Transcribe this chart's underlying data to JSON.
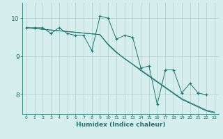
{
  "xlabel": "Humidex (Indice chaleur)",
  "ylabel": "",
  "background_color": "#d6eeee",
  "line_color": "#1a7a6e",
  "grid_color": "#b0cccc",
  "x_data": [
    0,
    1,
    2,
    3,
    4,
    5,
    6,
    7,
    8,
    9,
    10,
    11,
    12,
    13,
    14,
    15,
    16,
    17,
    18,
    19,
    20,
    21,
    22,
    23
  ],
  "y_main": [
    9.75,
    9.75,
    9.75,
    9.6,
    9.75,
    9.6,
    9.55,
    9.55,
    9.15,
    10.05,
    10.0,
    9.45,
    9.55,
    9.5,
    8.7,
    8.75,
    7.75,
    8.65,
    8.65,
    8.05,
    8.3,
    8.05,
    8.0,
    null
  ],
  "y_trend1": [
    9.75,
    9.73,
    9.71,
    9.69,
    9.67,
    9.65,
    9.63,
    9.61,
    9.59,
    9.57,
    9.3,
    9.1,
    8.95,
    8.8,
    8.65,
    8.5,
    8.35,
    8.2,
    8.05,
    7.9,
    7.8,
    7.7,
    7.6,
    7.55
  ],
  "y_trend2": [
    9.75,
    9.73,
    9.71,
    9.69,
    9.67,
    9.65,
    9.63,
    9.61,
    9.59,
    9.57,
    9.32,
    9.12,
    8.94,
    8.79,
    8.63,
    8.48,
    8.33,
    8.18,
    8.03,
    7.88,
    7.78,
    7.68,
    7.58,
    7.53
  ],
  "xlim": [
    -0.5,
    23.5
  ],
  "ylim": [
    7.5,
    10.4
  ],
  "yticks": [
    8,
    9,
    10
  ],
  "xticks": [
    0,
    1,
    2,
    3,
    4,
    5,
    6,
    7,
    8,
    9,
    10,
    11,
    12,
    13,
    14,
    15,
    16,
    17,
    18,
    19,
    20,
    21,
    22,
    23
  ]
}
